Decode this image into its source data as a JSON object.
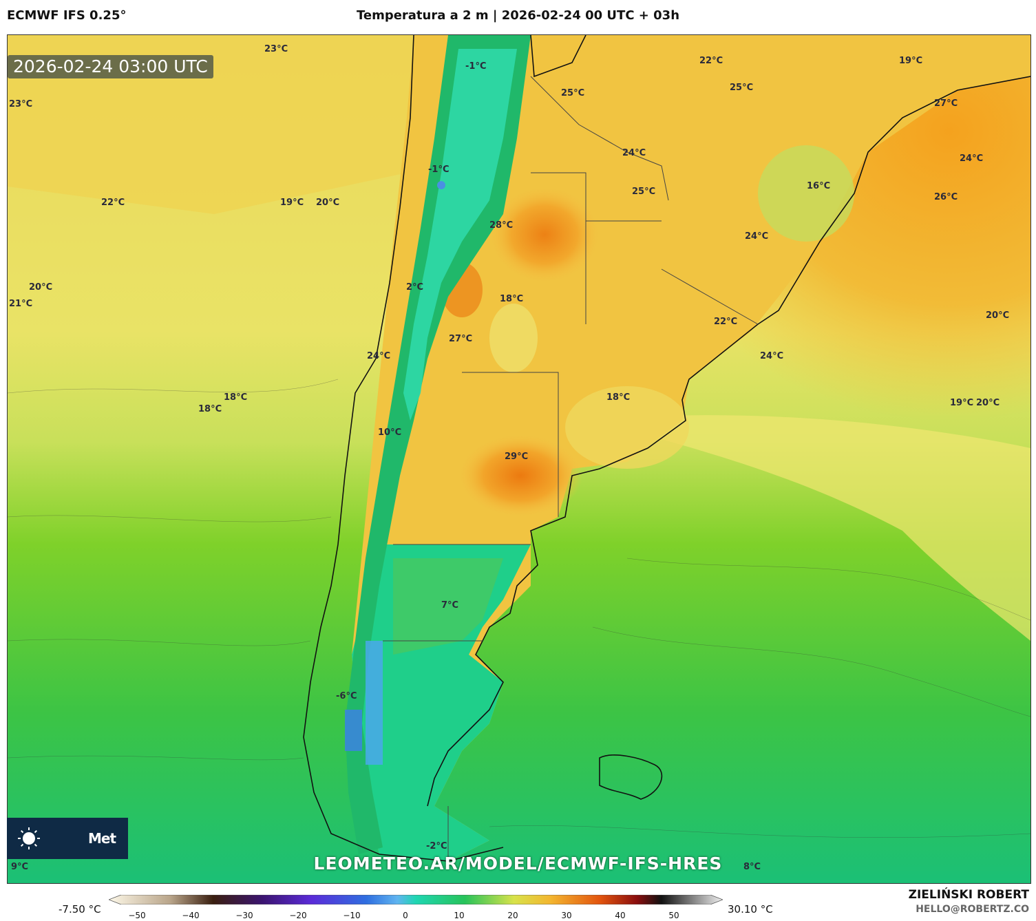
{
  "header": {
    "model": "ECMWF IFS 0.25°",
    "title": "Temperatura a 2 m | 2026-02-24 00 UTC + 03h"
  },
  "timestamp": "2026-02-24 03:00 UTC",
  "logo": {
    "icon": "sun-icon",
    "text": "Met"
  },
  "watermark": "LEOMETEO.AR/MODEL/ECMWF-IFS-HRES",
  "colorbar": {
    "min_label": "-7.50 °C",
    "max_label": "30.10 °C",
    "ticks": [
      "−50",
      "−40",
      "−30",
      "−20",
      "−10",
      "0",
      "10",
      "20",
      "30",
      "40",
      "50"
    ]
  },
  "author": {
    "name": "ZIELIŃSKI ROBERT",
    "contact": "HELLO@ROBERTZ.CO"
  },
  "temperature_labels": [
    {
      "text": "23°C"
    },
    {
      "text": "23°C"
    },
    {
      "text": "-1°C"
    },
    {
      "text": "22°C"
    },
    {
      "text": "19°C"
    },
    {
      "text": "25°C"
    },
    {
      "text": "25°C"
    },
    {
      "text": "27°C"
    },
    {
      "text": "24°C"
    },
    {
      "text": "24°C"
    },
    {
      "text": "-1°C"
    },
    {
      "text": "25°C"
    },
    {
      "text": "16°C"
    },
    {
      "text": "26°C"
    },
    {
      "text": "22°C"
    },
    {
      "text": "19°C"
    },
    {
      "text": "20°C"
    },
    {
      "text": "28°C"
    },
    {
      "text": "24°C"
    },
    {
      "text": "20°C"
    },
    {
      "text": "21°C"
    },
    {
      "text": "2°C"
    },
    {
      "text": "18°C"
    },
    {
      "text": "20°C"
    },
    {
      "text": "22°C"
    },
    {
      "text": "27°C"
    },
    {
      "text": "24°C"
    },
    {
      "text": "24°C"
    },
    {
      "text": "18°C"
    },
    {
      "text": "18°C"
    },
    {
      "text": "18°C"
    },
    {
      "text": "19°C"
    },
    {
      "text": "20°C"
    },
    {
      "text": "10°C"
    },
    {
      "text": "29°C"
    },
    {
      "text": "7°C"
    },
    {
      "text": "-6°C"
    },
    {
      "text": "-2°C"
    },
    {
      "text": "9°C"
    },
    {
      "text": "8°C"
    }
  ]
}
